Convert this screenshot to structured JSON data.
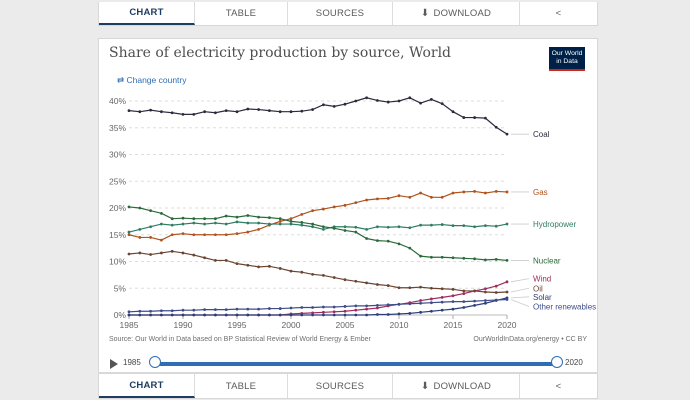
{
  "tabs": {
    "chart": "CHART",
    "table": "TABLE",
    "sources": "SOURCES",
    "download": "DOWNLOAD"
  },
  "title": "Share of electricity production by source, World",
  "logo": {
    "line1": "Our World",
    "line2": "in Data"
  },
  "change_country": "Change country",
  "footer": {
    "source": "Source: Our World in Data based on BP Statistical Review of World Energy & Ember",
    "credit": "OurWorldInData.org/energy • CC BY"
  },
  "timeline": {
    "start": "1985",
    "end": "2020"
  },
  "colors": {
    "Coal": "#2b2b3d",
    "Gas": "#b0531c",
    "Hydropower": "#2f7d63",
    "Nuclear": "#2a6a3a",
    "Wind": "#a02a5e",
    "Oil": "#6b4533",
    "Solar": "#2a3e7a",
    "Other renewables": "#3e4d8a",
    "accent": "#2f6db5"
  },
  "chart_data": {
    "type": "line",
    "title": "Share of electricity production by source, World",
    "x": [
      1985,
      1986,
      1987,
      1988,
      1989,
      1990,
      1991,
      1992,
      1993,
      1994,
      1995,
      1996,
      1997,
      1998,
      1999,
      2000,
      2001,
      2002,
      2003,
      2004,
      2005,
      2006,
      2007,
      2008,
      2009,
      2010,
      2011,
      2012,
      2013,
      2014,
      2015,
      2016,
      2017,
      2018,
      2019,
      2020
    ],
    "ylim": [
      0,
      40
    ],
    "yticks": [
      0,
      5,
      10,
      15,
      20,
      25,
      30,
      35,
      40
    ],
    "ytick_labels": [
      "0%",
      "5%",
      "10%",
      "15%",
      "20%",
      "25%",
      "30%",
      "35%",
      "40%"
    ],
    "xticks": [
      1985,
      1990,
      1995,
      2000,
      2005,
      2010,
      2015,
      2020
    ],
    "series": [
      {
        "name": "Coal",
        "values": [
          38.2,
          38.0,
          38.3,
          38.0,
          37.8,
          37.5,
          37.5,
          38.0,
          37.8,
          38.2,
          38.0,
          38.5,
          38.4,
          38.2,
          38.0,
          38.0,
          38.1,
          38.4,
          39.3,
          39.0,
          39.4,
          40.0,
          40.6,
          40.1,
          39.8,
          40.0,
          40.6,
          39.6,
          40.3,
          39.5,
          38.0,
          36.9,
          36.9,
          36.8,
          35.1,
          33.8
        ]
      },
      {
        "name": "Gas",
        "values": [
          15.0,
          14.5,
          14.5,
          14.0,
          15.0,
          15.2,
          15.0,
          15.0,
          15.0,
          15.0,
          15.2,
          15.5,
          16.0,
          16.8,
          17.5,
          18.0,
          18.8,
          19.5,
          19.8,
          20.2,
          20.5,
          21.0,
          21.5,
          21.7,
          21.8,
          22.3,
          22.0,
          22.8,
          22.0,
          22.0,
          22.8,
          23.0,
          23.1,
          22.8,
          23.1,
          23.0
        ]
      },
      {
        "name": "Hydropower",
        "values": [
          15.5,
          16.0,
          16.5,
          17.0,
          16.8,
          17.0,
          17.2,
          17.0,
          17.2,
          17.0,
          17.4,
          17.2,
          17.2,
          17.0,
          17.0,
          17.0,
          16.8,
          16.5,
          16.0,
          16.5,
          16.5,
          16.4,
          16.0,
          16.5,
          16.4,
          16.5,
          16.3,
          16.8,
          16.8,
          16.9,
          16.7,
          16.7,
          16.5,
          16.7,
          16.6,
          17.0
        ]
      },
      {
        "name": "Nuclear",
        "values": [
          20.2,
          20.0,
          19.5,
          19.0,
          18.0,
          18.1,
          18.0,
          18.0,
          18.0,
          18.5,
          18.3,
          18.6,
          18.3,
          18.2,
          18.0,
          17.5,
          17.3,
          17.0,
          16.5,
          16.2,
          15.8,
          15.5,
          14.3,
          13.9,
          13.8,
          13.3,
          12.5,
          11.0,
          10.8,
          10.8,
          10.7,
          10.6,
          10.5,
          10.3,
          10.4,
          10.2
        ]
      },
      {
        "name": "Wind",
        "values": [
          0,
          0,
          0,
          0,
          0,
          0,
          0,
          0,
          0,
          0,
          0,
          0,
          0,
          0,
          0,
          0.2,
          0.3,
          0.4,
          0.5,
          0.6,
          0.7,
          0.9,
          1.1,
          1.3,
          1.7,
          2.0,
          2.3,
          2.7,
          3.0,
          3.3,
          3.6,
          4.0,
          4.5,
          4.9,
          5.4,
          6.2
        ]
      },
      {
        "name": "Oil",
        "values": [
          11.4,
          11.6,
          11.3,
          11.6,
          11.9,
          11.6,
          11.2,
          10.7,
          10.2,
          10.2,
          9.6,
          9.3,
          9.0,
          9.1,
          8.7,
          8.2,
          8.0,
          7.6,
          7.4,
          7.0,
          6.6,
          6.3,
          6.0,
          5.7,
          5.5,
          5.1,
          5.1,
          5.2,
          5.0,
          4.9,
          4.8,
          4.5,
          4.5,
          4.3,
          4.2,
          4.3
        ]
      },
      {
        "name": "Solar",
        "values": [
          0,
          0,
          0,
          0,
          0,
          0,
          0,
          0,
          0,
          0,
          0,
          0,
          0,
          0,
          0,
          0,
          0,
          0,
          0,
          0,
          0,
          0,
          0,
          0.1,
          0.1,
          0.2,
          0.3,
          0.5,
          0.7,
          0.9,
          1.1,
          1.4,
          1.8,
          2.2,
          2.7,
          3.2
        ]
      },
      {
        "name": "Other renewables",
        "values": [
          0.6,
          0.7,
          0.7,
          0.8,
          0.8,
          0.9,
          0.9,
          1.0,
          1.0,
          1.0,
          1.1,
          1.1,
          1.1,
          1.2,
          1.2,
          1.3,
          1.4,
          1.4,
          1.5,
          1.5,
          1.6,
          1.7,
          1.7,
          1.8,
          1.9,
          2.0,
          2.1,
          2.2,
          2.3,
          2.4,
          2.5,
          2.5,
          2.6,
          2.7,
          2.8,
          2.9
        ]
      }
    ]
  }
}
